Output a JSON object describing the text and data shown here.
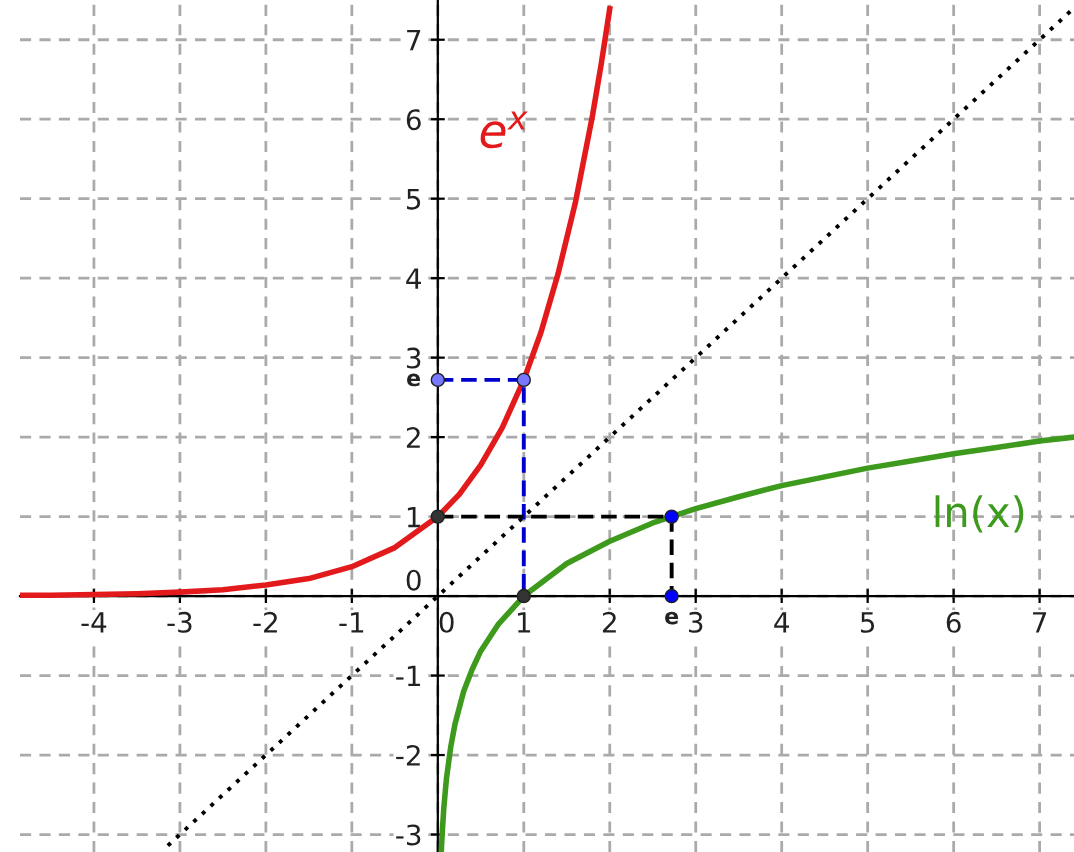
{
  "chart_data": {
    "type": "line",
    "xlim": [
      -4.86,
      7.4
    ],
    "ylim": [
      -3.22,
      7.5
    ],
    "xticks": [
      -4,
      -3,
      -2,
      -1,
      0,
      1,
      2,
      3,
      4,
      5,
      6,
      7
    ],
    "yticks": [
      -3,
      -2,
      -1,
      0,
      1,
      2,
      3,
      4,
      5,
      6,
      7
    ],
    "grid": true,
    "legend": false,
    "series": [
      {
        "color": "#e31a1c",
        "line_style": "solid",
        "x": [
          -4.86,
          -4.5,
          -4,
          -3.5,
          -3,
          -2.5,
          -2,
          -1.5,
          -1,
          -0.5,
          0,
          0.25,
          0.5,
          0.75,
          1,
          1.2,
          1.4,
          1.6,
          1.8,
          1.9,
          2.0
        ],
        "values": [
          0.01,
          0.01,
          0.02,
          0.03,
          0.05,
          0.08,
          0.14,
          0.22,
          0.37,
          0.61,
          1,
          1.28,
          1.65,
          2.12,
          2.72,
          3.32,
          4.06,
          4.95,
          6.05,
          6.69,
          7.39
        ]
      },
      {
        "color": "#3d9a1c",
        "line_style": "solid",
        "x": [
          0.04,
          0.05,
          0.07,
          0.1,
          0.15,
          0.2,
          0.3,
          0.4,
          0.5,
          0.7,
          1,
          1.5,
          2,
          2.5,
          3,
          3.5,
          4,
          4.5,
          5,
          5.5,
          6,
          6.5,
          7,
          7.4
        ],
        "values": [
          -3.22,
          -3.0,
          -2.66,
          -2.3,
          -1.9,
          -1.61,
          -1.2,
          -0.92,
          -0.69,
          -0.36,
          0,
          0.41,
          0.69,
          0.92,
          1.1,
          1.25,
          1.39,
          1.5,
          1.61,
          1.7,
          1.79,
          1.87,
          1.95,
          2.0
        ]
      },
      {
        "color": "#000000",
        "line_style": "dotted",
        "x": [
          -3.2,
          7.4
        ],
        "values": [
          -3.2,
          7.4
        ]
      },
      {
        "color": "#0000cc",
        "line_style": "dashed",
        "x": [
          0,
          1,
          1
        ],
        "values": [
          2.72,
          2.72,
          0
        ]
      },
      {
        "color": "#000000",
        "line_style": "dashed",
        "x": [
          0,
          2.72,
          2.72
        ],
        "values": [
          1,
          1,
          0
        ]
      },
      {
        "type": "scatter",
        "marker": "circle",
        "x": [
          0,
          1,
          0,
          1,
          2.72,
          2.72
        ],
        "values": [
          1,
          2.72,
          2.72,
          0,
          1,
          0
        ],
        "colors": [
          "#333333",
          "#7777ff",
          "#7777ff",
          "#333333",
          "#0000ff",
          "#0000ff"
        ]
      }
    ],
    "annotations": [
      "e$^{x}$",
      "ln(x)",
      {
        "text": "e",
        "x": 0,
        "y": 2.72
      },
      {
        "text": "e",
        "x": 2.72,
        "y": 0
      }
    ]
  }
}
